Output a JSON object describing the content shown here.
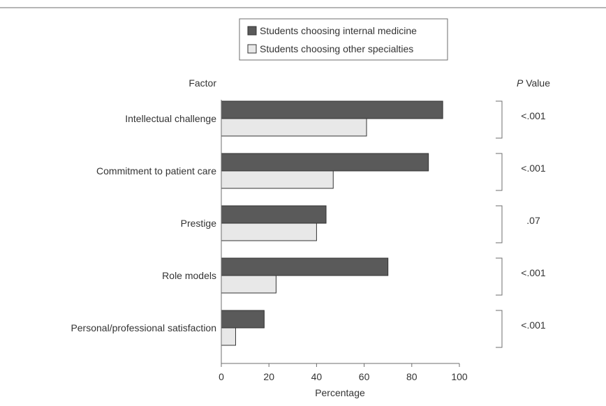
{
  "chart_data": {
    "type": "bar",
    "orientation": "horizontal",
    "categories": [
      "Intellectual challenge",
      "Commitment to patient care",
      "Prestige",
      "Role models",
      "Personal/professional satisfaction"
    ],
    "series": [
      {
        "name": "Students choosing internal medicine",
        "color": "#5a5a5a",
        "values": [
          93,
          87,
          44,
          70,
          18
        ]
      },
      {
        "name": "Students choosing other specialties",
        "color": "#e8e8e8",
        "values": [
          61,
          47,
          40,
          23,
          6
        ]
      }
    ],
    "p_values": [
      "<.001",
      "<.001",
      ".07",
      "<.001",
      "<.001"
    ],
    "category_header": "Factor",
    "pvalue_header_italic": "P",
    "pvalue_header_rest": " Value",
    "xlabel": "Percentage",
    "xlim": [
      0,
      100
    ],
    "xticks": [
      0,
      20,
      40,
      60,
      80,
      100
    ],
    "legend_position": "top-center",
    "grid": false
  }
}
